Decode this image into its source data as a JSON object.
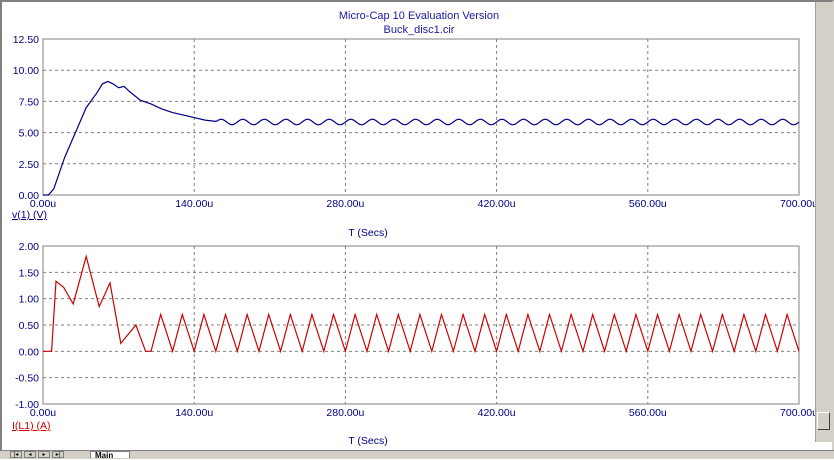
{
  "window": {
    "title": "Micro-Cap 10 Evaluation Version",
    "subtitle": "Buck_disc1.cir"
  },
  "tabs": {
    "nav": [
      "|◂",
      "◂",
      "▸",
      "▸|"
    ],
    "active": "Main"
  },
  "colors": {
    "plot1": "#000080",
    "plot2": "#cc0000",
    "grid": "#808080",
    "text": "#000080"
  },
  "chart_data": [
    {
      "type": "line",
      "ylabel": "v(1) (V)",
      "xlabel": "T (Secs)",
      "xlim": [
        0,
        700
      ],
      "ylim": [
        0,
        12.5
      ],
      "x_ticks": [
        "0.00u",
        "140.00u",
        "280.00u",
        "420.00u",
        "560.00u",
        "700.00u"
      ],
      "y_ticks": [
        "12.50",
        "10.00",
        "7.50",
        "5.00",
        "2.50",
        "0.00"
      ],
      "series": [
        {
          "name": "v(1) (V)",
          "x": [
            0,
            5,
            10,
            20,
            30,
            40,
            50,
            55,
            60,
            65,
            70,
            75,
            80,
            90,
            100,
            110,
            120,
            130,
            140,
            150,
            160
          ],
          "y": [
            0,
            0,
            0.5,
            3,
            5,
            7,
            8.2,
            8.9,
            9.1,
            8.9,
            8.6,
            8.7,
            8.3,
            7.6,
            7.3,
            6.9,
            6.6,
            6.4,
            6.2,
            6.0,
            5.9
          ]
        }
      ],
      "steady": {
        "from": 160,
        "to": 700,
        "mean": 5.85,
        "amplitude": 0.22,
        "period": 20
      }
    },
    {
      "type": "line",
      "ylabel": "I(L1) (A)",
      "xlabel": "T (Secs)",
      "xlim": [
        0,
        700
      ],
      "ylim": [
        -1,
        2
      ],
      "x_ticks": [
        "0.00u",
        "140.00u",
        "280.00u",
        "420.00u",
        "560.00u",
        "700.00u"
      ],
      "y_ticks": [
        "2.00",
        "1.50",
        "1.00",
        "0.50",
        "0.00",
        "-0.50",
        "-1.00"
      ],
      "series": [
        {
          "name": "I(L1) (A)",
          "x": [
            0,
            8,
            12,
            19,
            28,
            40,
            52,
            62,
            72,
            80,
            86,
            95,
            100
          ],
          "y": [
            0,
            0,
            1.33,
            1.22,
            0.9,
            1.8,
            0.85,
            1.3,
            0.15,
            0.35,
            0.5,
            0,
            0
          ]
        }
      ],
      "steady": {
        "from": 100,
        "to": 700,
        "low": 0,
        "high": 0.7,
        "period": 20
      }
    }
  ]
}
